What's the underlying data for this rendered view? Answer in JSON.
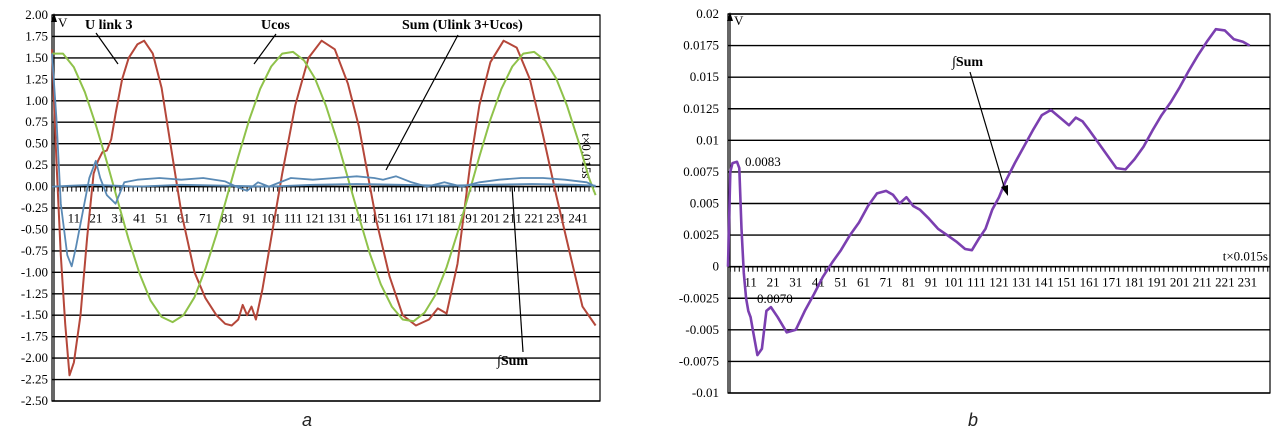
{
  "chart_data": [
    {
      "id": "a",
      "type": "line",
      "caption": "a",
      "ylabel": "V",
      "xlabel": "t×0.015s",
      "ylim": [
        -2.5,
        2.0
      ],
      "yticks": [
        "2.00",
        "1.75",
        "1.50",
        "1.25",
        "1.00",
        "0.75",
        "0.50",
        "0.25",
        "0.00",
        "-0.25",
        "-0.50",
        "-0.75",
        "-1.00",
        "-1.25",
        "-1.50",
        "-1.75",
        "-2.00",
        "-2.25",
        "-2.50"
      ],
      "xlim": [
        1,
        251
      ],
      "xticks": [
        11,
        21,
        31,
        41,
        51,
        61,
        71,
        81,
        91,
        101,
        111,
        121,
        131,
        141,
        151,
        161,
        171,
        181,
        191,
        201,
        211,
        221,
        231,
        241
      ],
      "grid": true,
      "series": [
        {
          "name": "U link 3",
          "color": "#b5473a",
          "x": [
            1,
            3,
            5,
            7,
            9,
            11,
            14,
            17,
            20,
            22,
            24,
            26,
            28,
            30,
            33,
            36,
            40,
            43,
            47,
            51,
            55,
            60,
            66,
            71,
            76,
            80,
            83,
            86,
            88,
            90,
            92,
            94,
            97,
            101,
            106,
            112,
            118,
            124,
            130,
            136,
            141,
            145,
            149,
            155,
            161,
            167,
            173,
            177,
            181,
            183,
            186,
            189,
            192,
            196,
            201,
            207,
            213,
            219,
            225,
            231,
            237,
            243,
            249
          ],
          "y": [
            1.6,
            0.3,
            -0.8,
            -1.6,
            -2.2,
            -2.05,
            -1.5,
            -0.6,
            0.15,
            0.3,
            0.4,
            0.42,
            0.55,
            0.85,
            1.25,
            1.5,
            1.66,
            1.7,
            1.55,
            1.15,
            0.5,
            -0.3,
            -1.0,
            -1.3,
            -1.5,
            -1.6,
            -1.62,
            -1.55,
            -1.38,
            -1.5,
            -1.4,
            -1.55,
            -1.2,
            -0.6,
            0.15,
            0.95,
            1.5,
            1.7,
            1.6,
            1.2,
            0.7,
            0.15,
            -0.4,
            -1.05,
            -1.5,
            -1.62,
            -1.55,
            -1.42,
            -1.48,
            -1.25,
            -0.9,
            -0.3,
            0.3,
            0.95,
            1.45,
            1.7,
            1.62,
            1.25,
            0.6,
            -0.1,
            -0.75,
            -1.4,
            -1.62
          ]
        },
        {
          "name": "Ucos",
          "color": "#8fc24a",
          "x": [
            1,
            6,
            11,
            16,
            21,
            26,
            31,
            36,
            41,
            46,
            51,
            56,
            61,
            66,
            71,
            76,
            81,
            86,
            91,
            96,
            101,
            106,
            111,
            116,
            121,
            126,
            131,
            136,
            141,
            146,
            151,
            156,
            161,
            166,
            171,
            176,
            181,
            186,
            191,
            196,
            201,
            206,
            211,
            216,
            221,
            226,
            231,
            236,
            241,
            246,
            249
          ],
          "y": [
            1.55,
            1.55,
            1.39,
            1.1,
            0.72,
            0.29,
            -0.17,
            -0.62,
            -1.02,
            -1.33,
            -1.52,
            -1.58,
            -1.5,
            -1.29,
            -0.96,
            -0.56,
            -0.1,
            0.35,
            0.78,
            1.14,
            1.4,
            1.55,
            1.57,
            1.47,
            1.26,
            0.94,
            0.54,
            0.1,
            -0.35,
            -0.78,
            -1.14,
            -1.4,
            -1.55,
            -1.57,
            -1.47,
            -1.26,
            -0.94,
            -0.54,
            -0.1,
            0.35,
            0.78,
            1.14,
            1.4,
            1.55,
            1.57,
            1.47,
            1.26,
            0.94,
            0.54,
            0.1,
            -0.1
          ]
        },
        {
          "name": "Sum (Ulink 3+Ucos)",
          "color": "#5a8ab5",
          "x": [
            1,
            3,
            5,
            8,
            10,
            12,
            15,
            18,
            21,
            23,
            26,
            30,
            34,
            40,
            50,
            60,
            70,
            80,
            85,
            90,
            95,
            100,
            110,
            120,
            130,
            140,
            148,
            152,
            158,
            165,
            172,
            180,
            188,
            196,
            205,
            215,
            225,
            235,
            245,
            249
          ],
          "y": [
            1.55,
            0.8,
            -0.2,
            -0.8,
            -0.93,
            -0.7,
            -0.3,
            0.1,
            0.3,
            0.1,
            -0.1,
            -0.2,
            0.05,
            0.08,
            0.1,
            0.08,
            0.1,
            0.06,
            0.0,
            -0.05,
            0.05,
            0.0,
            0.1,
            0.08,
            0.1,
            0.12,
            0.1,
            0.08,
            0.12,
            0.05,
            0.0,
            0.05,
            0.0,
            0.05,
            0.08,
            0.1,
            0.1,
            0.08,
            0.05,
            0.0
          ]
        },
        {
          "name": "∫Sum",
          "color": "#5a8ab5",
          "x": [
            1,
            10,
            20,
            30,
            40,
            60,
            80,
            100,
            120,
            140,
            160,
            180,
            200,
            220,
            240,
            249
          ],
          "y": [
            0.0,
            0.01,
            0.02,
            0.01,
            0.0,
            0.02,
            0.01,
            0.0,
            0.02,
            0.03,
            0.02,
            0.01,
            0.02,
            0.03,
            0.02,
            0.01
          ]
        }
      ],
      "annotations": [
        {
          "text": "U link 3"
        },
        {
          "text": "Ucos"
        },
        {
          "text": "Sum (Ulink 3+Ucos)"
        },
        {
          "text": "∫Sum"
        }
      ]
    },
    {
      "id": "b",
      "type": "line",
      "caption": "b",
      "ylabel": "V",
      "xlabel": "t×0.015s",
      "ylim": [
        -0.01,
        0.02
      ],
      "yticks": [
        "0.02",
        "0.0175",
        "0.015",
        "0.0125",
        "0.01",
        "0.0075",
        "0.005",
        "0.0025",
        "0",
        "-0.0025",
        "-0.005",
        "-0.0075",
        "-0.01"
      ],
      "xlim": [
        1,
        241
      ],
      "xticks": [
        11,
        21,
        31,
        41,
        51,
        61,
        71,
        81,
        91,
        101,
        111,
        121,
        131,
        141,
        151,
        161,
        171,
        181,
        191,
        201,
        211,
        221,
        231
      ],
      "grid": true,
      "series": [
        {
          "name": "∫Sum",
          "color": "#7b3fb0",
          "x": [
            1,
            2,
            3,
            5,
            6,
            7,
            8,
            9,
            10,
            11,
            12,
            14,
            16,
            18,
            20,
            23,
            27,
            31,
            35,
            39,
            43,
            47,
            51,
            55,
            59,
            63,
            67,
            71,
            74,
            77,
            80,
            83,
            86,
            90,
            94,
            98,
            102,
            106,
            109,
            112,
            115,
            118,
            121,
            124,
            128,
            132,
            136,
            140,
            144,
            148,
            152,
            155,
            158,
            161,
            165,
            169,
            173,
            177,
            181,
            185,
            189,
            193,
            197,
            201,
            205,
            209,
            213,
            217,
            221,
            225,
            229,
            232
          ],
          "y": [
            0.0,
            0.0075,
            0.0082,
            0.0083,
            0.0078,
            0.003,
            -0.0005,
            -0.0025,
            -0.0035,
            -0.004,
            -0.005,
            -0.007,
            -0.0065,
            -0.0035,
            -0.0032,
            -0.004,
            -0.0052,
            -0.005,
            -0.0035,
            -0.0022,
            -0.0008,
            0.0003,
            0.0013,
            0.0025,
            0.0035,
            0.0048,
            0.0058,
            0.006,
            0.0057,
            0.005,
            0.0055,
            0.0048,
            0.0045,
            0.0038,
            0.003,
            0.0025,
            0.002,
            0.0014,
            0.0013,
            0.0022,
            0.003,
            0.0045,
            0.0055,
            0.0068,
            0.0082,
            0.0095,
            0.0108,
            0.012,
            0.0124,
            0.0118,
            0.0112,
            0.0118,
            0.0115,
            0.0108,
            0.0098,
            0.0088,
            0.0078,
            0.0077,
            0.0085,
            0.0095,
            0.0108,
            0.012,
            0.013,
            0.0142,
            0.0155,
            0.0167,
            0.0178,
            0.0188,
            0.0187,
            0.018,
            0.0178,
            0.0175
          ]
        }
      ],
      "annotations": [
        {
          "text": "0.0083"
        },
        {
          "text": "0.0070"
        },
        {
          "text": "∫Sum"
        }
      ]
    }
  ]
}
